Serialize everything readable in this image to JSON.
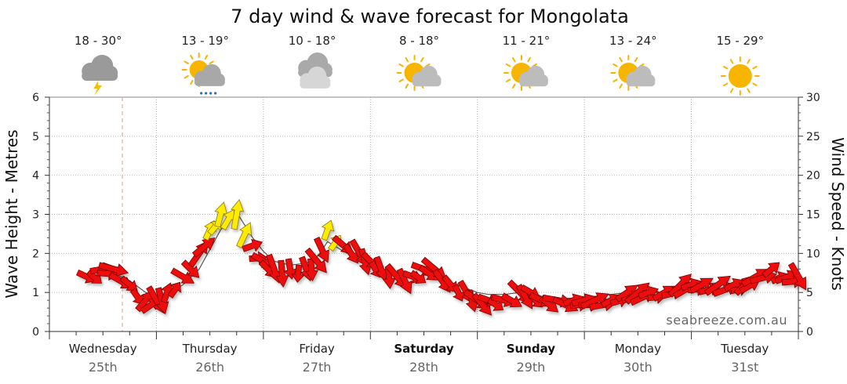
{
  "chart_data": {
    "type": "line",
    "title": "7 day wind & wave forecast for Mongolata",
    "ylabel_left": "Wave Height - Metres",
    "ylabel_right": "Wind Speed - Knots",
    "ylim_left": [
      0,
      6
    ],
    "ylim_right": [
      0,
      30
    ],
    "yticks_left": [
      "0",
      "1",
      "2",
      "3",
      "4",
      "5",
      "6"
    ],
    "yticks_right": [
      "0",
      "5",
      "10",
      "15",
      "20",
      "25",
      "30"
    ],
    "watermark": "seabreeze.com.au",
    "days": [
      {
        "name": "Wednesday",
        "date": "25th",
        "temp": "18 - 30°",
        "icon": "thunderstorm-icon",
        "bold": false
      },
      {
        "name": "Thursday",
        "date": "26th",
        "temp": "13 - 19°",
        "icon": "partly-cloudy-rain-icon",
        "bold": false
      },
      {
        "name": "Friday",
        "date": "27th",
        "temp": "10 - 18°",
        "icon": "cloudy-icon",
        "bold": false
      },
      {
        "name": "Saturday",
        "date": "28th",
        "temp": "8 - 18°",
        "icon": "partly-cloudy-icon",
        "bold": true
      },
      {
        "name": "Sunday",
        "date": "29th",
        "temp": "11 - 21°",
        "icon": "partly-cloudy-icon",
        "bold": true
      },
      {
        "name": "Monday",
        "date": "30th",
        "temp": "13 - 24°",
        "icon": "partly-cloudy-icon",
        "bold": false
      },
      {
        "name": "Tuesday",
        "date": "31st",
        "temp": "15 - 29°",
        "icon": "sunny-icon",
        "bold": false
      }
    ],
    "series": [
      {
        "name": "Wave Height (m)",
        "x": [
          0.35,
          0.5,
          0.6,
          0.75,
          0.9,
          1.0,
          1.1,
          1.25,
          1.4,
          1.5,
          1.6,
          1.75,
          1.9,
          2.0,
          2.1,
          2.25,
          2.4,
          2.5,
          2.6,
          2.75,
          2.9,
          3.0,
          3.1,
          3.25,
          3.4,
          3.5,
          3.6,
          3.75,
          3.9,
          4.0,
          4.1,
          4.25,
          4.4,
          4.5,
          4.6,
          4.75,
          4.9,
          5.0,
          5.1,
          5.25,
          5.4,
          5.5,
          5.6,
          5.75,
          5.9,
          6.0,
          6.1,
          6.25,
          6.4,
          6.5,
          6.6,
          6.75,
          6.9,
          7.0
        ],
        "values": [
          1.3,
          1.45,
          1.5,
          1.3,
          1.0,
          0.9,
          0.95,
          1.2,
          1.6,
          2.1,
          2.6,
          3.05,
          2.4,
          2.05,
          1.8,
          1.7,
          1.75,
          1.9,
          2.3,
          2.05,
          1.85,
          1.7,
          1.6,
          1.5,
          1.35,
          1.45,
          1.4,
          1.25,
          1.1,
          1.0,
          0.95,
          0.95,
          1.0,
          1.0,
          0.9,
          0.85,
          0.85,
          0.9,
          0.9,
          0.95,
          1.0,
          1.05,
          1.0,
          1.0,
          1.1,
          1.15,
          1.2,
          1.25,
          1.2,
          1.25,
          1.35,
          1.35,
          1.3,
          1.3
        ]
      },
      {
        "name": "Wind Speed (kn)",
        "x": [
          0.35,
          0.5,
          0.6,
          0.75,
          0.9,
          1.0,
          1.1,
          1.25,
          1.4,
          1.5,
          1.6,
          1.75,
          1.9,
          2.0,
          2.1,
          2.25,
          2.4,
          2.5,
          2.6,
          2.75,
          2.9,
          3.0,
          3.1,
          3.25,
          3.4,
          3.5,
          3.6,
          3.75,
          3.9,
          4.0,
          4.1,
          4.25,
          4.4,
          4.5,
          4.6,
          4.75,
          4.9,
          5.0,
          5.1,
          5.25,
          5.4,
          5.5,
          5.6,
          5.75,
          5.9,
          6.0,
          6.1,
          6.25,
          6.4,
          6.5,
          6.6,
          6.75,
          6.9,
          7.0
        ],
        "values": [
          7,
          8,
          8,
          6,
          4,
          4,
          5,
          7,
          10,
          13,
          15,
          15,
          11,
          9,
          8,
          8,
          8,
          9,
          13,
          11,
          10,
          9,
          8,
          7,
          7,
          8,
          8,
          6,
          5,
          4,
          4,
          4,
          5,
          5,
          4,
          4,
          4,
          4,
          4,
          4,
          5,
          5,
          5,
          5,
          6,
          6,
          6,
          6,
          6,
          6,
          7,
          8,
          7,
          7
        ]
      }
    ]
  }
}
